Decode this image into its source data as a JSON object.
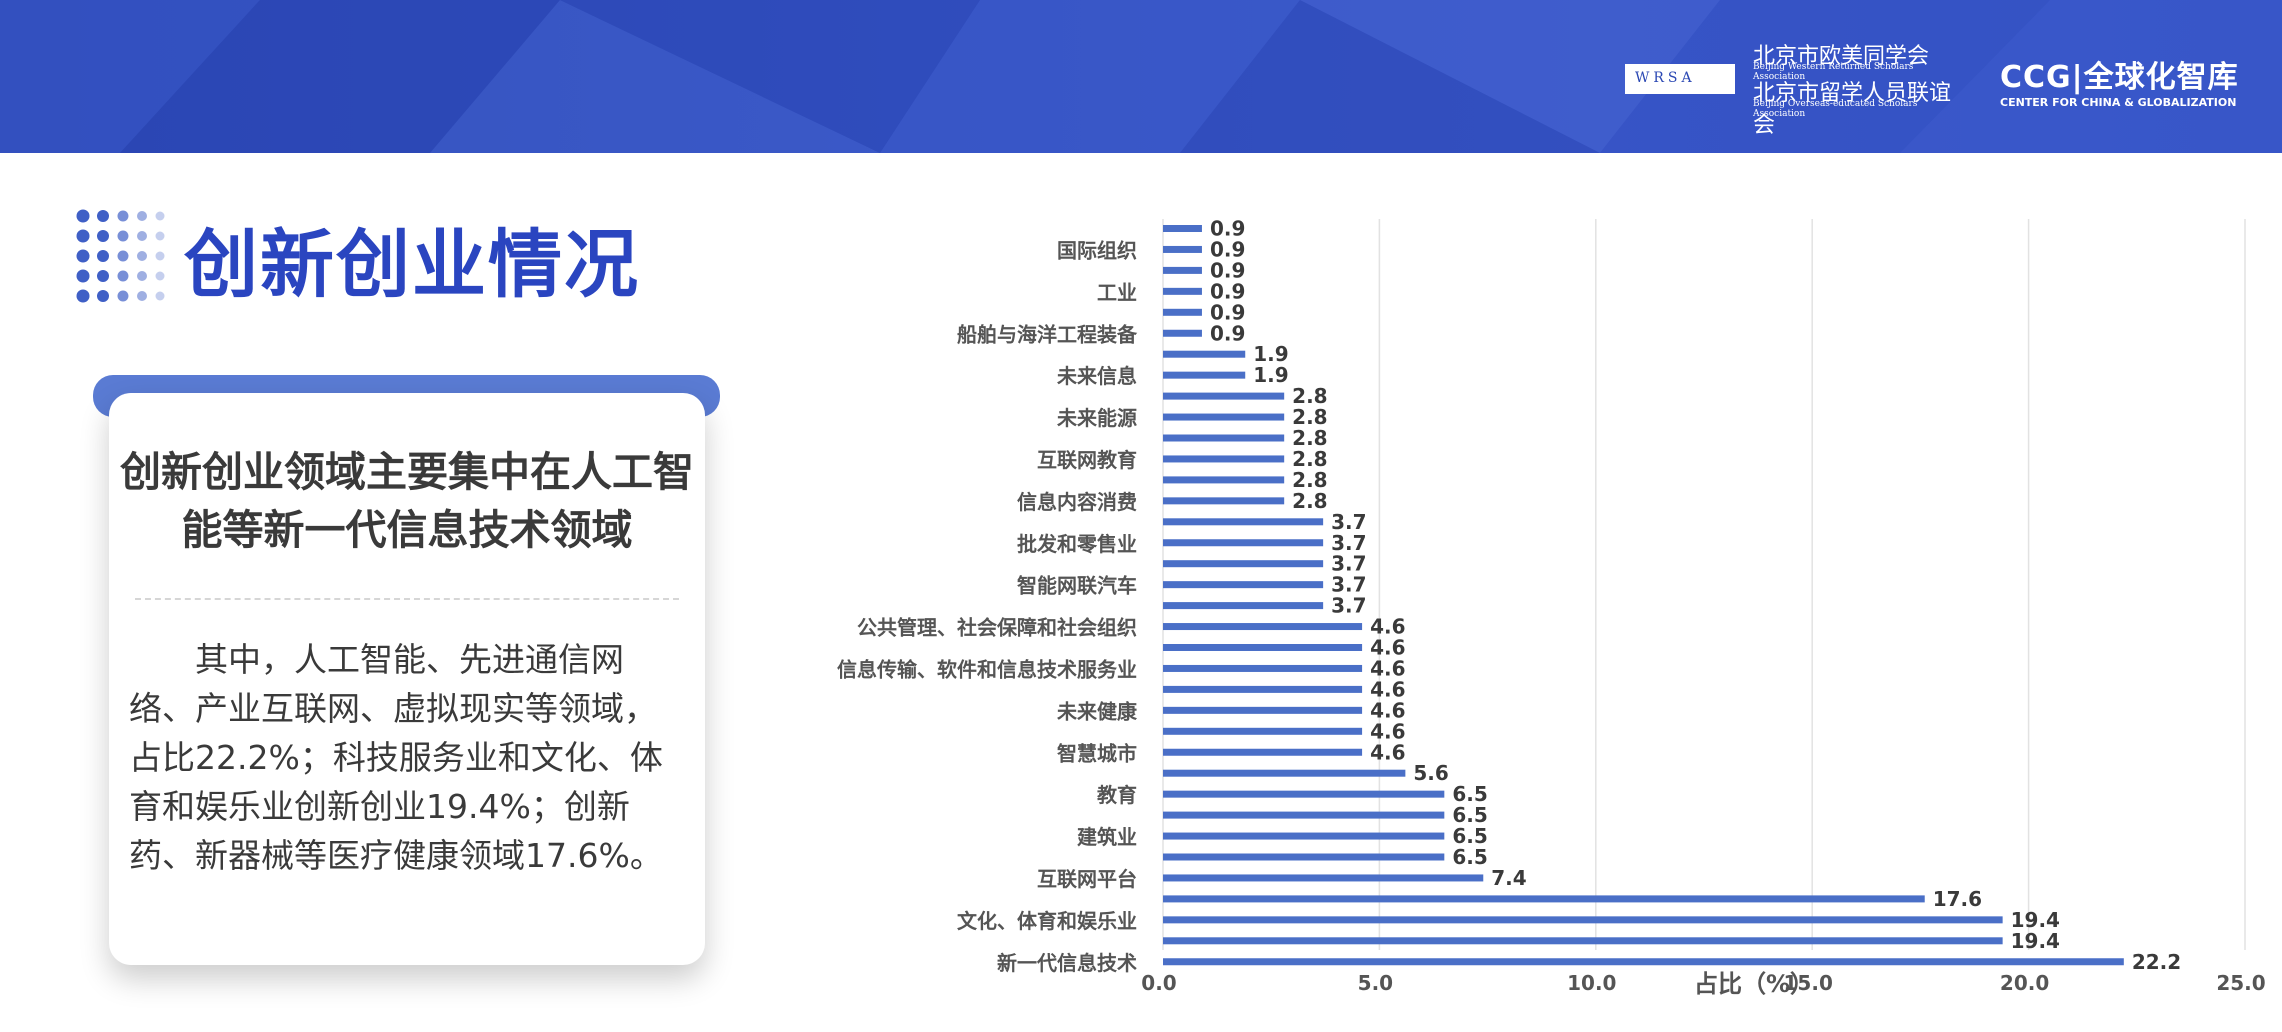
{
  "header": {
    "association_cn_1": "北京市欧美同学会",
    "association_en_1": "Beijing Western Returned Scholars Association",
    "association_cn_2": "北京市留学人员联谊会",
    "association_en_2": "Beijing Overseas-educated Scholars Association",
    "wrsa_mark": "WRSA",
    "ccg_name": "CCG|全球化智库",
    "ccg_en": "CENTER FOR CHINA & GLOBALIZATION"
  },
  "page": {
    "title": "创新创业情况"
  },
  "card": {
    "heading": "创新创业领域主要集中在人工智能等新一代信息技术领域",
    "body": "其中，人工智能、先进通信网络、产业互联网、虚拟现实等领域，占比22.2%；科技服务业和文化、体育和娱乐业创新创业19.4%；创新药、新器械等医疗健康领域17.6%。"
  },
  "colors": {
    "bar": "#4a6fc7",
    "header": "#3350c2",
    "title": "#2a45c0",
    "card_tab": "#5a7bd3"
  },
  "chart_data": {
    "type": "bar",
    "orientation": "horizontal",
    "xlabel": "占比（%）",
    "xlim": [
      0,
      25
    ],
    "xticks": [
      "0.0",
      "5.0",
      "10.0",
      "15.0",
      "20.0",
      "25.0"
    ],
    "grid": "vertical",
    "bars_top_to_bottom": [
      {
        "label": "",
        "value": 0.9
      },
      {
        "label": "国际组织",
        "value": 0.9
      },
      {
        "label": "",
        "value": 0.9
      },
      {
        "label": "工业",
        "value": 0.9
      },
      {
        "label": "",
        "value": 0.9
      },
      {
        "label": "船舶与海洋工程装备",
        "value": 0.9
      },
      {
        "label": "",
        "value": 1.9
      },
      {
        "label": "未来信息",
        "value": 1.9
      },
      {
        "label": "",
        "value": 2.8
      },
      {
        "label": "未来能源",
        "value": 2.8
      },
      {
        "label": "",
        "value": 2.8
      },
      {
        "label": "互联网教育",
        "value": 2.8
      },
      {
        "label": "",
        "value": 2.8
      },
      {
        "label": "信息内容消费",
        "value": 2.8
      },
      {
        "label": "",
        "value": 3.7
      },
      {
        "label": "批发和零售业",
        "value": 3.7
      },
      {
        "label": "",
        "value": 3.7
      },
      {
        "label": "智能网联汽车",
        "value": 3.7
      },
      {
        "label": "",
        "value": 3.7
      },
      {
        "label": "公共管理、社会保障和社会组织",
        "value": 4.6
      },
      {
        "label": "",
        "value": 4.6
      },
      {
        "label": "信息传输、软件和信息技术服务业",
        "value": 4.6
      },
      {
        "label": "",
        "value": 4.6
      },
      {
        "label": "未来健康",
        "value": 4.6
      },
      {
        "label": "",
        "value": 4.6
      },
      {
        "label": "智慧城市",
        "value": 4.6
      },
      {
        "label": "",
        "value": 5.6
      },
      {
        "label": "教育",
        "value": 6.5
      },
      {
        "label": "",
        "value": 6.5
      },
      {
        "label": "建筑业",
        "value": 6.5
      },
      {
        "label": "",
        "value": 6.5
      },
      {
        "label": "互联网平台",
        "value": 7.4
      },
      {
        "label": "",
        "value": 17.6
      },
      {
        "label": "文化、体育和娱乐业",
        "value": 19.4
      },
      {
        "label": "",
        "value": 19.4
      },
      {
        "label": "新一代信息技术",
        "value": 22.2
      }
    ]
  }
}
